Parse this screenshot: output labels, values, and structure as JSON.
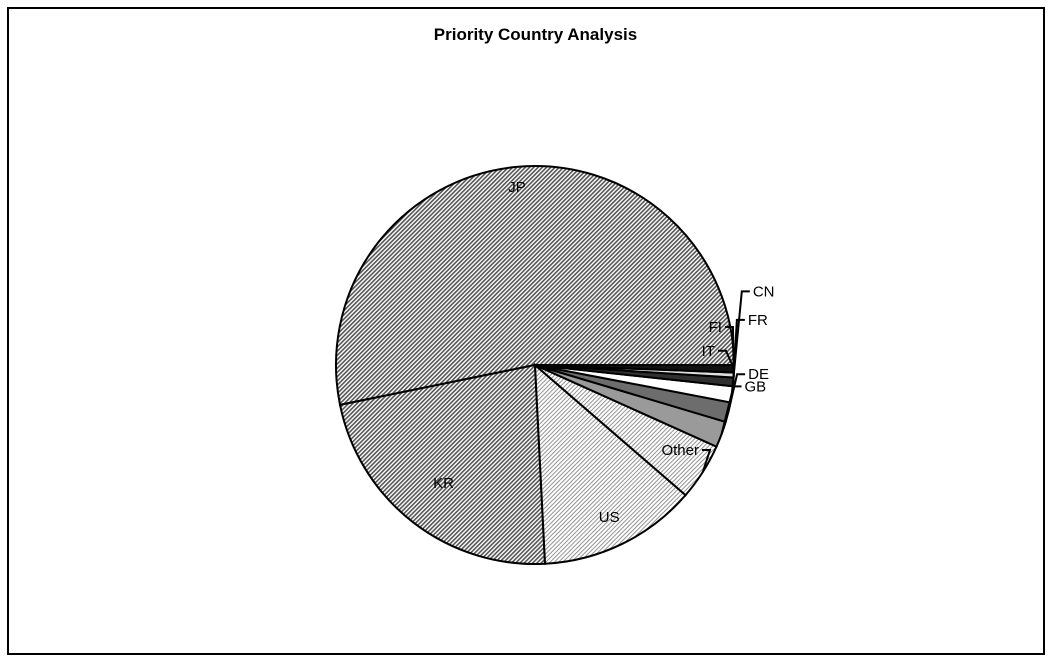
{
  "chart_data": {
    "type": "pie",
    "title": "Priority Country Analysis",
    "categories": [
      "JP",
      "KR",
      "US",
      "Other",
      "GB",
      "DE",
      "CN",
      "FR",
      "FI",
      "IT"
    ],
    "values": [
      53.0,
      22.5,
      12.8,
      4.6,
      2.1,
      1.6,
      1.3,
      0.7,
      0.4,
      0.6
    ],
    "unit": "percent",
    "start_angle_deg": 0,
    "direction": "counterclockwise",
    "legend": "none",
    "colors": {
      "JP": "#a6a6a6",
      "KR": "#a6a6a6",
      "US": "#dedede",
      "Other": "#c9c9c9",
      "GB": "#9a9a9a",
      "DE": "#6d6d6d",
      "CN": "#ffffff",
      "FR": "#303030",
      "FI": "#e0e0e0",
      "IT": "#111111"
    }
  }
}
